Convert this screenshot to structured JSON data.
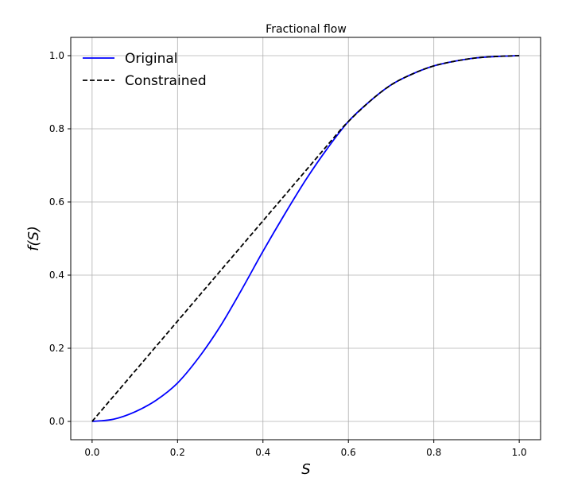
{
  "chart_data": {
    "type": "line",
    "title": "Fractional flow",
    "xlabel": "S",
    "ylabel": "f(S)",
    "xlim": [
      -0.05,
      1.05
    ],
    "ylim": [
      -0.05,
      1.05
    ],
    "xticks": [
      0.0,
      0.2,
      0.4,
      0.6,
      0.8,
      1.0
    ],
    "yticks": [
      0.0,
      0.2,
      0.4,
      0.6,
      0.8,
      1.0
    ],
    "xtick_labels": [
      "0.0",
      "0.2",
      "0.4",
      "0.6",
      "0.8",
      "1.0"
    ],
    "ytick_labels": [
      "0.0",
      "0.2",
      "0.4",
      "0.6",
      "0.8",
      "1.0"
    ],
    "grid": true,
    "legend_position": "top-left",
    "series": [
      {
        "name": "Original",
        "color": "#0000ff",
        "style": "solid",
        "x": [
          0.0,
          0.05,
          0.1,
          0.15,
          0.2,
          0.25,
          0.3,
          0.35,
          0.4,
          0.45,
          0.5,
          0.55,
          0.6,
          0.65,
          0.7,
          0.75,
          0.8,
          0.85,
          0.9,
          0.95,
          1.0
        ],
        "y": [
          0.0,
          0.006,
          0.026,
          0.058,
          0.105,
          0.175,
          0.26,
          0.36,
          0.465,
          0.565,
          0.66,
          0.745,
          0.82,
          0.875,
          0.92,
          0.95,
          0.972,
          0.985,
          0.994,
          0.998,
          1.0
        ]
      },
      {
        "name": "Constrained",
        "color": "#000000",
        "style": "dashed",
        "x": [
          0.0,
          0.58,
          0.6,
          0.65,
          0.7,
          0.75,
          0.8,
          0.85,
          0.9,
          0.95,
          1.0
        ],
        "y": [
          0.0,
          0.795,
          0.82,
          0.875,
          0.92,
          0.95,
          0.972,
          0.985,
          0.994,
          0.998,
          1.0
        ]
      }
    ]
  }
}
